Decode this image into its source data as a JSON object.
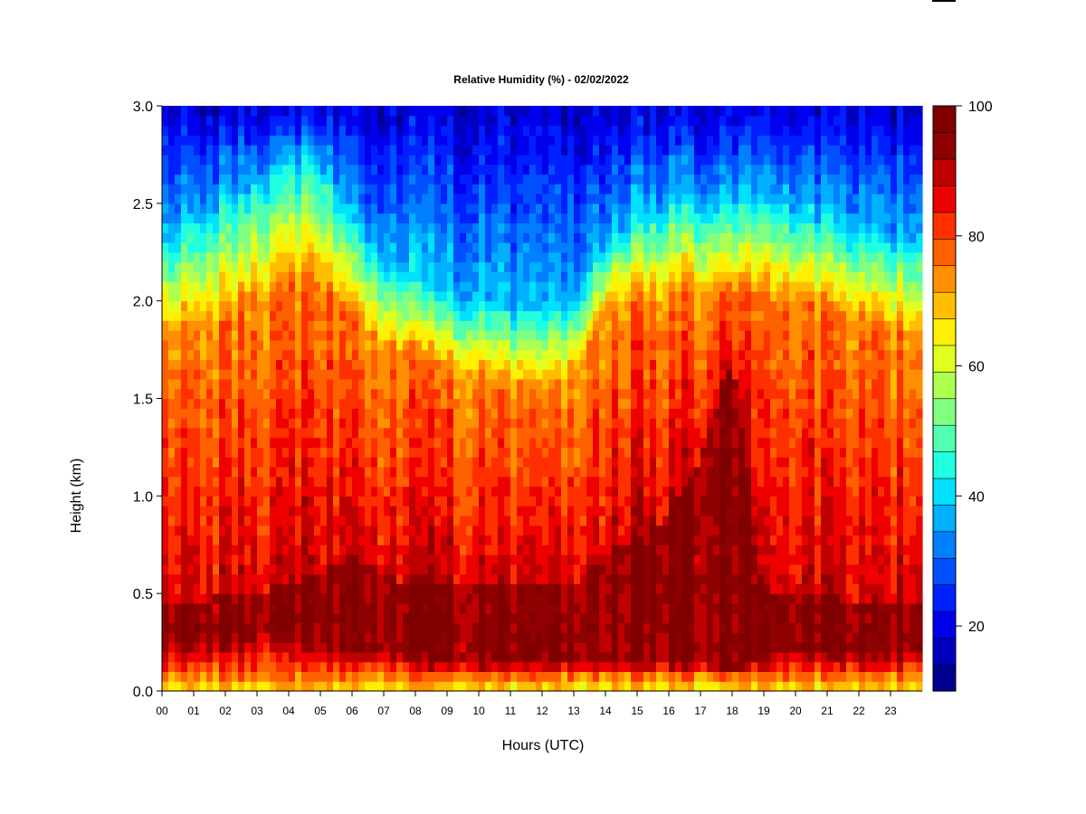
{
  "chart_data": {
    "type": "heatmap",
    "title": "Relative Humidity (%) - 02/02/2022",
    "xlabel": "Hours (UTC)",
    "ylabel": "Height (km)",
    "x_ticks": [
      "00",
      "01",
      "02",
      "03",
      "04",
      "05",
      "06",
      "07",
      "08",
      "09",
      "10",
      "11",
      "12",
      "13",
      "14",
      "15",
      "16",
      "17",
      "18",
      "19",
      "20",
      "21",
      "22",
      "23"
    ],
    "y_ticks": [
      "0.0",
      "0.5",
      "1.0",
      "1.5",
      "2.0",
      "2.5",
      "3.0"
    ],
    "xlim": [
      0,
      24
    ],
    "ylim": [
      0,
      3.0
    ],
    "colorbar": {
      "min": 10,
      "max": 100,
      "tick_labels": [
        "20",
        "40",
        "60",
        "80",
        "100"
      ],
      "tick_values": [
        20,
        40,
        60,
        80,
        100
      ],
      "levels": [
        10,
        15,
        20,
        25,
        30,
        35,
        40,
        45,
        50,
        55,
        60,
        65,
        70,
        75,
        80,
        85,
        90,
        95,
        100
      ],
      "colors": [
        "#00008f",
        "#0000bf",
        "#0000ef",
        "#0020ff",
        "#0050ff",
        "#0080ff",
        "#00b0ff",
        "#00e0ff",
        "#20ffdf",
        "#50ffaf",
        "#80ff80",
        "#afff50",
        "#dfff20",
        "#ffef00",
        "#ffbf00",
        "#ff8f00",
        "#ff6000",
        "#ff3000",
        "#ef0000",
        "#bf0000",
        "#8f0000",
        "#800000"
      ]
    },
    "humidity_profile": {
      "description": "boundary heights (km) of humidity regimes by hour",
      "hours": [
        0,
        1,
        2,
        3,
        4,
        5,
        6,
        7,
        8,
        9,
        10,
        11,
        12,
        13,
        14,
        15,
        16,
        17,
        18,
        19,
        20,
        21,
        22,
        23,
        24
      ],
      "moist_top_km": [
        1.8,
        1.85,
        1.9,
        2.0,
        2.05,
        2.1,
        1.9,
        1.75,
        1.7,
        1.65,
        1.6,
        1.55,
        1.55,
        1.6,
        1.95,
        2.0,
        2.0,
        2.05,
        2.05,
        2.0,
        2.0,
        1.95,
        1.9,
        1.85,
        1.8
      ],
      "dry_base_km": [
        2.3,
        2.4,
        2.5,
        2.6,
        2.7,
        2.7,
        2.4,
        2.2,
        2.1,
        2.0,
        2.0,
        1.95,
        1.95,
        2.0,
        2.3,
        2.4,
        2.5,
        2.5,
        2.5,
        2.5,
        2.45,
        2.4,
        2.35,
        2.3,
        2.3
      ],
      "saturated_layer_km": [
        [
          0.25,
          0.45
        ],
        [
          0.25,
          0.45
        ],
        [
          0.25,
          0.5
        ],
        [
          0.3,
          0.5
        ],
        [
          0.3,
          0.55
        ],
        [
          0.25,
          0.6
        ],
        [
          0.2,
          0.7
        ],
        [
          0.2,
          0.6
        ],
        [
          0.2,
          0.55
        ],
        [
          0.15,
          0.55
        ],
        [
          0.15,
          0.55
        ],
        [
          0.15,
          0.55
        ],
        [
          0.15,
          0.55
        ],
        [
          0.15,
          0.55
        ],
        [
          0.15,
          0.7
        ],
        [
          0.15,
          0.8
        ],
        [
          0.15,
          0.9
        ],
        [
          0.15,
          1.2
        ],
        [
          0.1,
          1.7
        ],
        [
          0.2,
          0.5
        ],
        [
          0.2,
          0.5
        ],
        [
          0.2,
          0.5
        ],
        [
          0.2,
          0.45
        ],
        [
          0.2,
          0.45
        ],
        [
          0.2,
          0.45
        ]
      ]
    }
  }
}
